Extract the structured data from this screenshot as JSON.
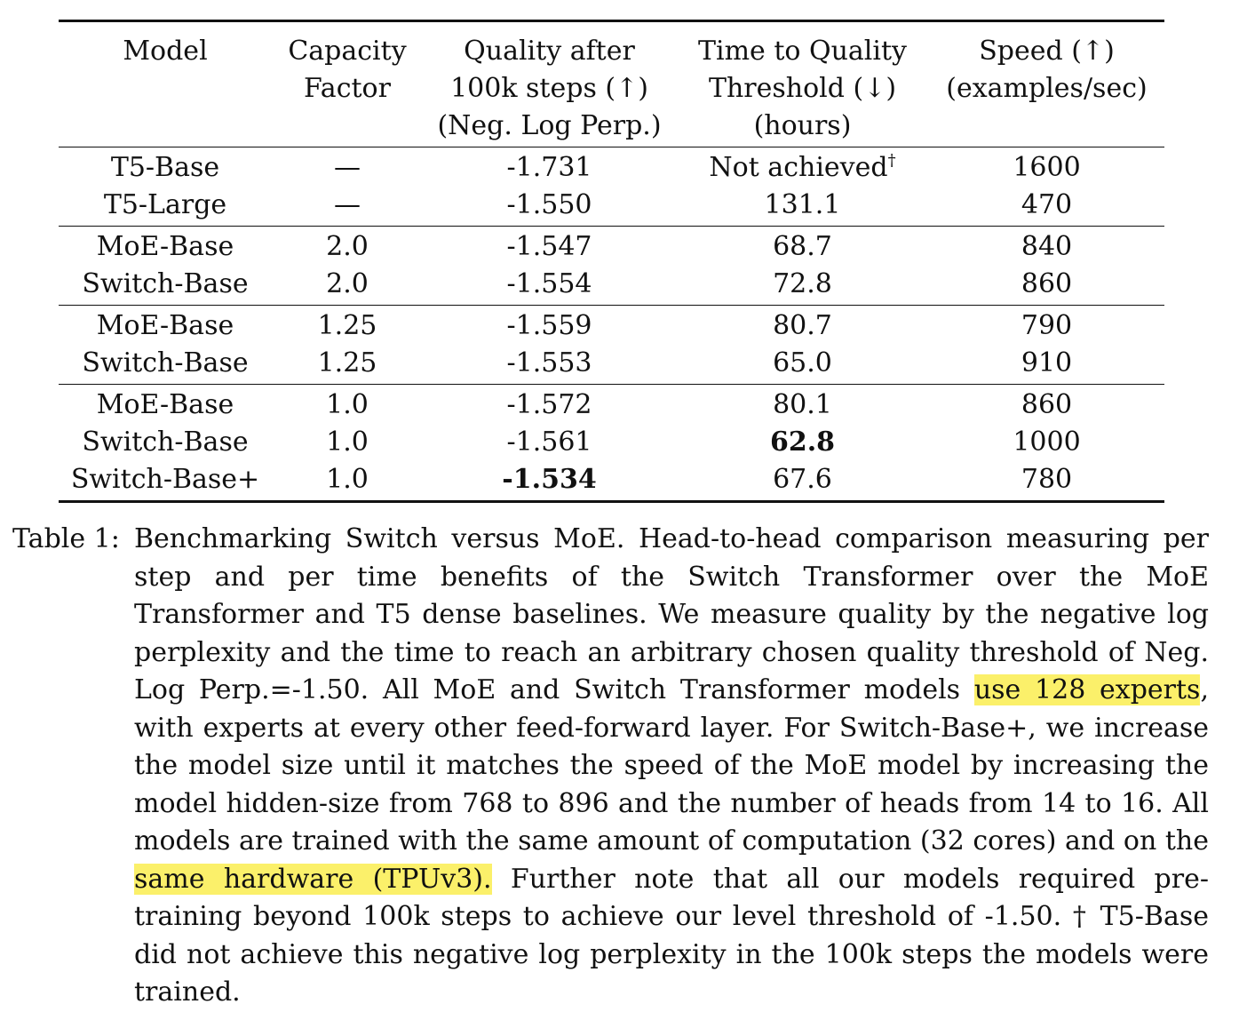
{
  "table": {
    "headers": [
      {
        "lines": [
          "Model"
        ]
      },
      {
        "lines": [
          "Capacity",
          "Factor"
        ]
      },
      {
        "lines": [
          "Quality after",
          "100k steps (↑)",
          "(Neg. Log Perp.)"
        ]
      },
      {
        "lines": [
          "Time to Quality",
          "Threshold (↓)",
          "(hours)"
        ]
      },
      {
        "lines": [
          "Speed (↑)",
          "(examples/sec)"
        ]
      }
    ],
    "groups": [
      [
        {
          "model": "T5-Base",
          "capacity": "—",
          "quality": "-1.731",
          "time": "Not achieved",
          "time_mark": "†",
          "speed": "1600"
        },
        {
          "model": "T5-Large",
          "capacity": "—",
          "quality": "-1.550",
          "time": "131.1",
          "time_mark": "",
          "speed": "470"
        }
      ],
      [
        {
          "model": "MoE-Base",
          "capacity": "2.0",
          "quality": "-1.547",
          "time": "68.7",
          "time_mark": "",
          "speed": "840"
        },
        {
          "model": "Switch-Base",
          "capacity": "2.0",
          "quality": "-1.554",
          "time": "72.8",
          "time_mark": "",
          "speed": "860"
        }
      ],
      [
        {
          "model": "MoE-Base",
          "capacity": "1.25",
          "quality": "-1.559",
          "time": "80.7",
          "time_mark": "",
          "speed": "790"
        },
        {
          "model": "Switch-Base",
          "capacity": "1.25",
          "quality": "-1.553",
          "time": "65.0",
          "time_mark": "",
          "speed": "910"
        }
      ],
      [
        {
          "model": "MoE-Base",
          "capacity": "1.0",
          "quality": "-1.572",
          "time": "80.1",
          "time_mark": "",
          "speed": "860"
        },
        {
          "model": "Switch-Base",
          "capacity": "1.0",
          "quality": "-1.561",
          "time": "62.8",
          "time_mark": "",
          "speed": "1000",
          "bold_time": true
        },
        {
          "model": "Switch-Base+",
          "capacity": "1.0",
          "quality": "-1.534",
          "time": "67.6",
          "time_mark": "",
          "speed": "780",
          "bold_quality": true
        }
      ]
    ]
  },
  "caption": {
    "label": "Table 1:",
    "segments": [
      {
        "text": "Benchmarking Switch versus MoE. Head-to-head comparison measuring per step and per time benefits of the Switch Transformer over the MoE Transformer and T5 dense baselines.  We measure quality by the negative log perplexity and the time to reach an arbitrary chosen quality threshold of Neg. Log Perp.=-1.50. All MoE and Switch Transformer models ",
        "highlight": false
      },
      {
        "text": "use 128 experts",
        "highlight": true
      },
      {
        "text": ", with experts at every other feed-forward layer. For Switch-Base+, we increase the model size until it matches the speed of the MoE model by increasing the model hidden-size from 768 to 896 and the number of heads from 14 to 16.  All models are trained with the same amount of computation (32 cores) and on the ",
        "highlight": false
      },
      {
        "text": "same hardware (TPUv3).",
        "highlight": true
      },
      {
        "text": " Further note that all our models required pre-training beyond 100k steps to achieve our level threshold of -1.50. † T5-Base did not achieve this negative log perplexity in the 100k steps the models were trained.",
        "highlight": false
      }
    ]
  },
  "colors": {
    "highlight": "#fbf06a",
    "text": "#111111",
    "rule": "#111111"
  }
}
